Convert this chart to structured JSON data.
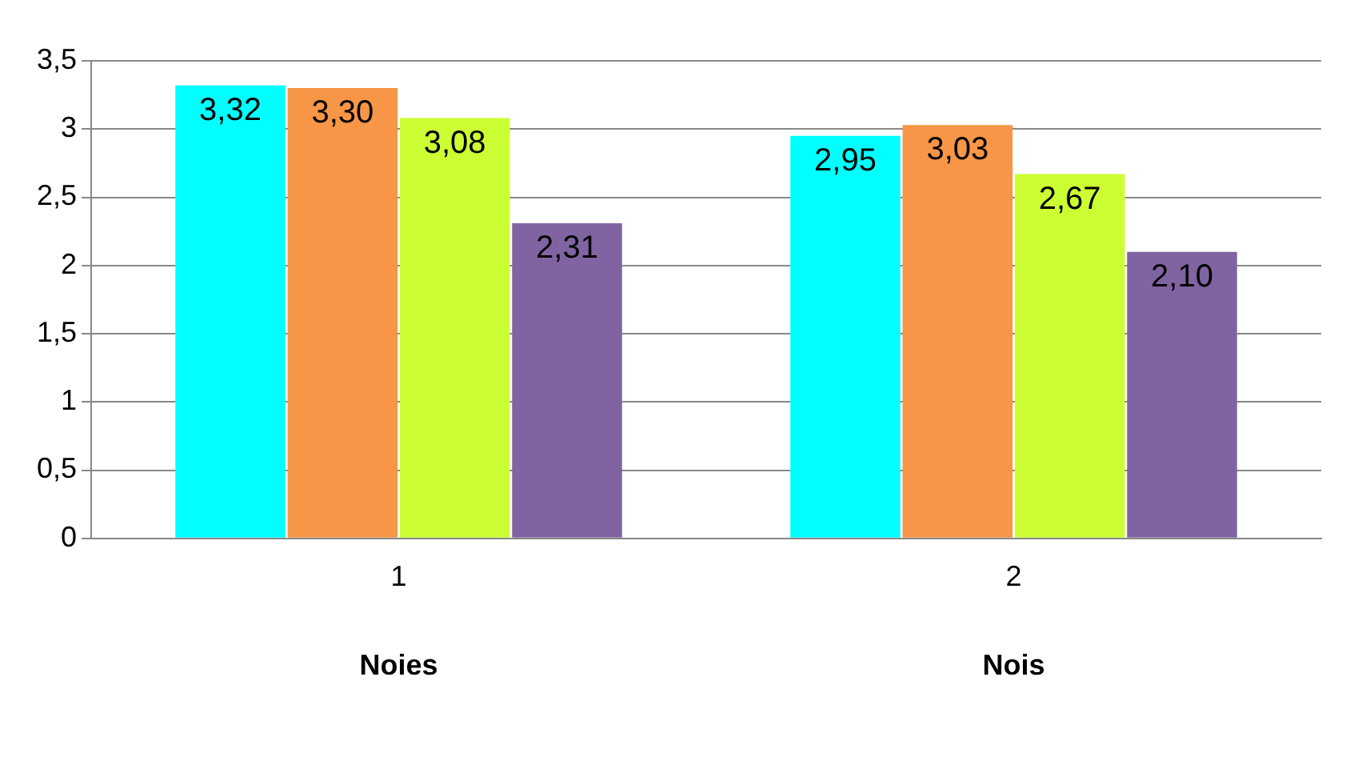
{
  "chart_data": {
    "type": "bar",
    "categories": [
      "1",
      "2"
    ],
    "series": [
      {
        "color": "#00ffff",
        "values": [
          3.32,
          2.95
        ],
        "value_labels": [
          "3,32",
          "2,95"
        ]
      },
      {
        "color": "#f79646",
        "values": [
          3.3,
          3.03
        ],
        "value_labels": [
          "3,30",
          "3,03"
        ]
      },
      {
        "color": "#ccff33",
        "values": [
          3.08,
          2.67
        ],
        "value_labels": [
          "3,08",
          "2,67"
        ]
      },
      {
        "color": "#8064a2",
        "values": [
          2.31,
          2.1
        ],
        "value_labels": [
          "2,31",
          "2,10"
        ]
      }
    ],
    "ylim": [
      0,
      3.5
    ],
    "yticks": [
      0,
      {
        "value": 0.5,
        "label": "0,5"
      },
      1,
      {
        "value": 1.5,
        "label": "1,5"
      },
      2,
      {
        "value": 2.5,
        "label": "2,5"
      },
      3,
      {
        "value": 3.5,
        "label": "3,5"
      }
    ],
    "grid": "y",
    "legend": false,
    "annotations": [
      "Noies",
      "Nois"
    ]
  }
}
